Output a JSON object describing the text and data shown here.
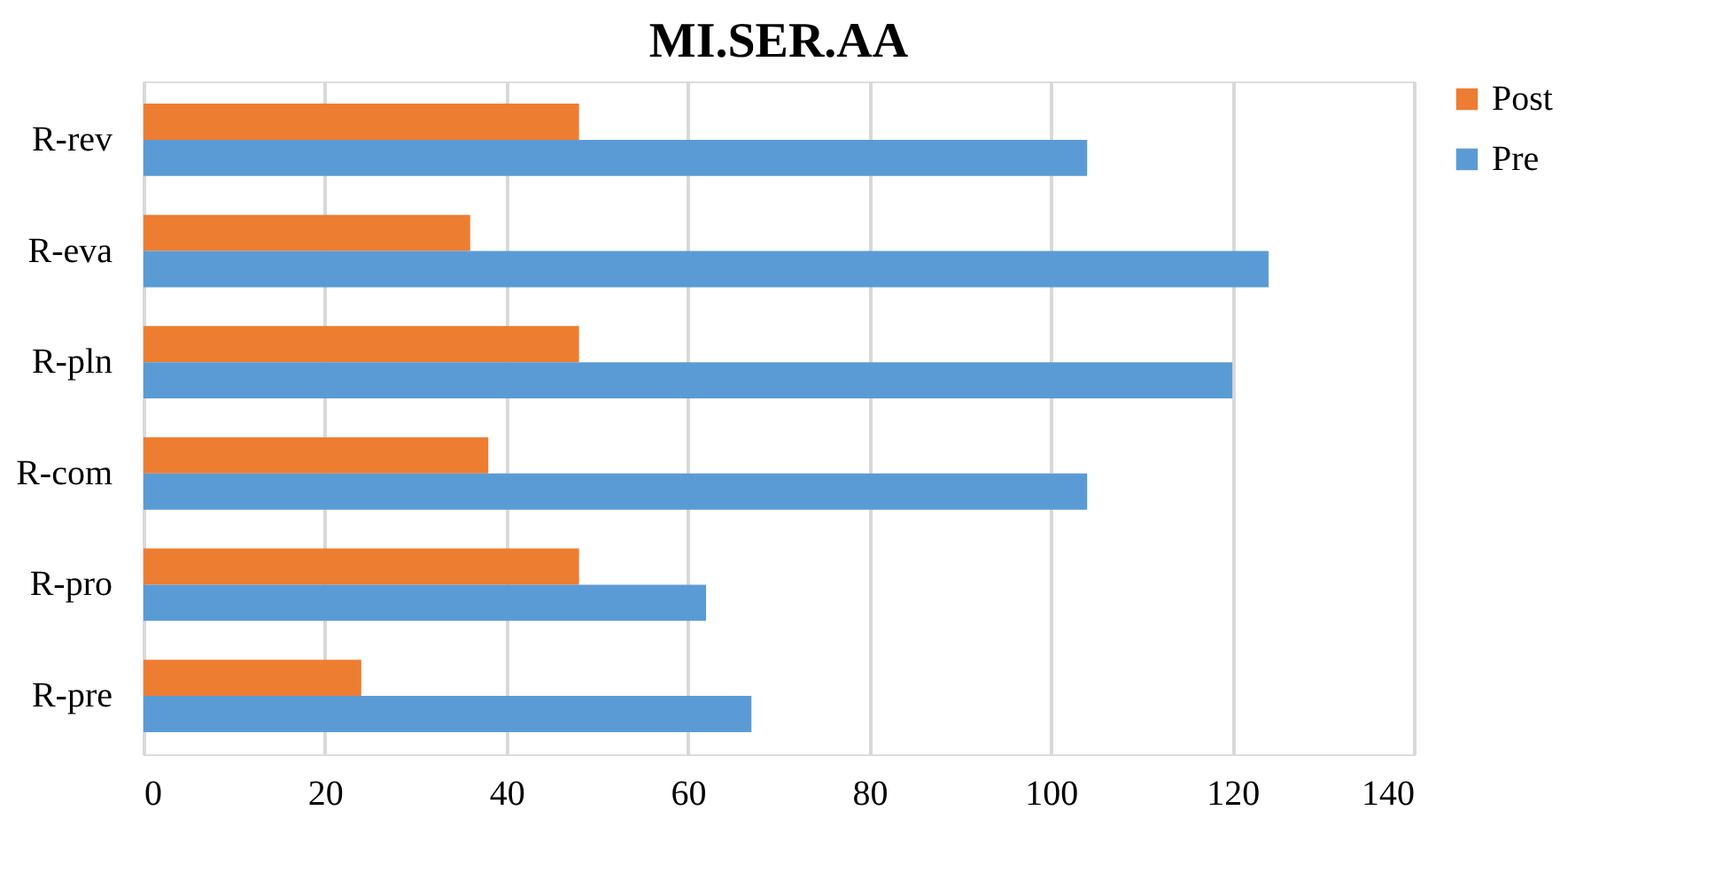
{
  "chart_data": {
    "type": "bar",
    "orientation": "horizontal",
    "title": "MI.SER.AA",
    "categories": [
      "R-rev",
      "R-eva",
      "R-pln",
      "R-com",
      "R-pro",
      "R-pre"
    ],
    "series": [
      {
        "name": "Post",
        "color": "#ed7d31",
        "values": [
          48,
          36,
          48,
          38,
          48,
          24
        ]
      },
      {
        "name": "Pre",
        "color": "#5b9bd5",
        "values": [
          104,
          124,
          120,
          104,
          62,
          67
        ]
      }
    ],
    "xlim": [
      0,
      140
    ],
    "xticks": [
      0,
      20,
      40,
      60,
      80,
      100,
      120,
      140
    ],
    "grid": "x",
    "legend": "right"
  }
}
